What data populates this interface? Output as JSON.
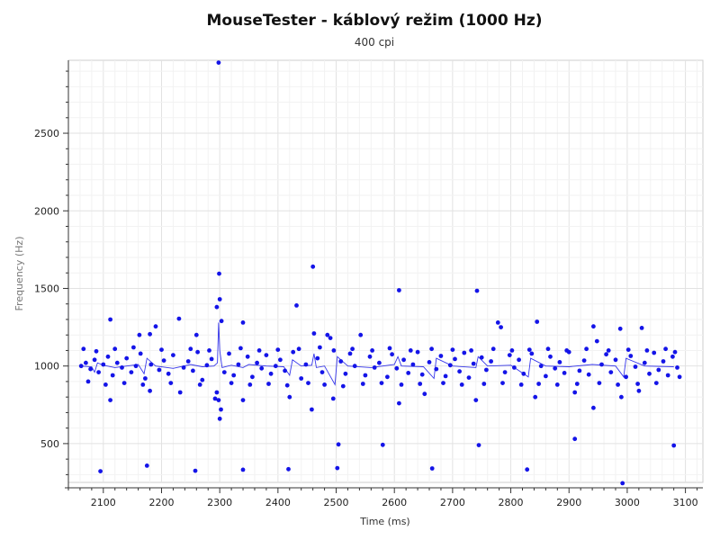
{
  "chart_data": {
    "type": "scatter",
    "title": "MouseTester - káblový režim (1000 Hz)",
    "subtitle": "400 cpi",
    "xlabel": "Time (ms)",
    "ylabel": "Frequency (Hz)",
    "xlim": [
      2040,
      3130
    ],
    "ylim": [
      250,
      2970
    ],
    "x_ticks": [
      2100,
      2200,
      2300,
      2400,
      2500,
      2600,
      2700,
      2800,
      2900,
      3000,
      3100
    ],
    "y_ticks": [
      500,
      1000,
      1500,
      2000,
      2500
    ],
    "grid": true,
    "series": [
      {
        "color": "#1414e8",
        "points": [
          [
            2095,
            322
          ],
          [
            2175,
            358
          ],
          [
            2258,
            325
          ],
          [
            2340,
            332
          ],
          [
            2418,
            335
          ],
          [
            2502,
            342
          ],
          [
            2665,
            340
          ],
          [
            2828,
            333
          ],
          [
            2992,
            245
          ],
          [
            2504,
            495
          ],
          [
            2580,
            492
          ],
          [
            2745,
            490
          ],
          [
            2910,
            530
          ],
          [
            3080,
            488
          ],
          [
            2298,
            2955
          ],
          [
            2299,
            1595
          ],
          [
            2300,
            1430
          ],
          [
            2460,
            1640
          ],
          [
            2608,
            1488
          ],
          [
            2742,
            1485
          ],
          [
            2112,
            1300
          ],
          [
            2230,
            1305
          ],
          [
            2432,
            1390
          ],
          [
            2295,
            1380
          ],
          [
            2303,
            1290
          ],
          [
            2340,
            1280
          ],
          [
            2180,
            1205
          ],
          [
            2162,
            1200
          ],
          [
            2190,
            1255
          ],
          [
            2260,
            1200
          ],
          [
            2462,
            1210
          ],
          [
            2485,
            1200
          ],
          [
            2490,
            1180
          ],
          [
            2542,
            1200
          ],
          [
            2778,
            1280
          ],
          [
            2783,
            1250
          ],
          [
            2845,
            1285
          ],
          [
            2942,
            1255
          ],
          [
            2988,
            1240
          ],
          [
            3025,
            1245
          ],
          [
            2948,
            1160
          ],
          [
            2298,
            780
          ],
          [
            2302,
            720
          ],
          [
            2300,
            660
          ],
          [
            2292,
            790
          ],
          [
            2295,
            830
          ],
          [
            2458,
            720
          ],
          [
            2340,
            780
          ],
          [
            2112,
            780
          ],
          [
            2608,
            760
          ],
          [
            2740,
            780
          ],
          [
            2942,
            730
          ],
          [
            2990,
            800
          ],
          [
            2842,
            800
          ],
          [
            2495,
            790
          ],
          [
            2420,
            800
          ],
          [
            2232,
            830
          ],
          [
            2180,
            840
          ],
          [
            2652,
            820
          ],
          [
            2910,
            830
          ],
          [
            3020,
            840
          ],
          [
            2062,
            1000
          ],
          [
            2070,
            1020
          ],
          [
            2078,
            980
          ],
          [
            2085,
            1040
          ],
          [
            2092,
            960
          ],
          [
            2100,
            1010
          ],
          [
            2108,
            1060
          ],
          [
            2116,
            940
          ],
          [
            2124,
            1020
          ],
          [
            2132,
            990
          ],
          [
            2140,
            1050
          ],
          [
            2148,
            960
          ],
          [
            2156,
            1000
          ],
          [
            2164,
            1080
          ],
          [
            2172,
            920
          ],
          [
            2182,
            1010
          ],
          [
            2196,
            975
          ],
          [
            2204,
            1035
          ],
          [
            2212,
            950
          ],
          [
            2220,
            1070
          ],
          [
            2238,
            990
          ],
          [
            2246,
            1030
          ],
          [
            2254,
            970
          ],
          [
            2262,
            1090
          ],
          [
            2270,
            910
          ],
          [
            2278,
            1005
          ],
          [
            2286,
            1045
          ],
          [
            2308,
            960
          ],
          [
            2316,
            1080
          ],
          [
            2324,
            940
          ],
          [
            2332,
            1010
          ],
          [
            2348,
            1060
          ],
          [
            2356,
            930
          ],
          [
            2364,
            1020
          ],
          [
            2372,
            985
          ],
          [
            2380,
            1070
          ],
          [
            2388,
            950
          ],
          [
            2396,
            1000
          ],
          [
            2404,
            1040
          ],
          [
            2412,
            970
          ],
          [
            2426,
            1090
          ],
          [
            2440,
            920
          ],
          [
            2448,
            1010
          ],
          [
            2468,
            1050
          ],
          [
            2476,
            960
          ],
          [
            2508,
            1030
          ],
          [
            2516,
            950
          ],
          [
            2524,
            1080
          ],
          [
            2532,
            1000
          ],
          [
            2550,
            940
          ],
          [
            2558,
            1060
          ],
          [
            2566,
            990
          ],
          [
            2574,
            1020
          ],
          [
            2588,
            930
          ],
          [
            2596,
            1075
          ],
          [
            2604,
            985
          ],
          [
            2616,
            1040
          ],
          [
            2624,
            955
          ],
          [
            2632,
            1010
          ],
          [
            2640,
            1090
          ],
          [
            2648,
            945
          ],
          [
            2660,
            1025
          ],
          [
            2672,
            980
          ],
          [
            2680,
            1065
          ],
          [
            2688,
            935
          ],
          [
            2696,
            1005
          ],
          [
            2704,
            1045
          ],
          [
            2712,
            965
          ],
          [
            2720,
            1085
          ],
          [
            2728,
            925
          ],
          [
            2736,
            1015
          ],
          [
            2750,
            1055
          ],
          [
            2758,
            975
          ],
          [
            2766,
            1030
          ],
          [
            2790,
            960
          ],
          [
            2798,
            1070
          ],
          [
            2806,
            990
          ],
          [
            2814,
            1040
          ],
          [
            2822,
            950
          ],
          [
            2836,
            1080
          ],
          [
            2852,
            1000
          ],
          [
            2860,
            935
          ],
          [
            2868,
            1060
          ],
          [
            2876,
            985
          ],
          [
            2884,
            1025
          ],
          [
            2892,
            955
          ],
          [
            2900,
            1090
          ],
          [
            2918,
            970
          ],
          [
            2926,
            1035
          ],
          [
            2934,
            945
          ],
          [
            2956,
            1010
          ],
          [
            2964,
            1075
          ],
          [
            2972,
            960
          ],
          [
            2980,
            1040
          ],
          [
            2998,
            930
          ],
          [
            3006,
            1065
          ],
          [
            3014,
            995
          ],
          [
            3030,
            1020
          ],
          [
            3038,
            950
          ],
          [
            3046,
            1085
          ],
          [
            3054,
            975
          ],
          [
            3062,
            1030
          ],
          [
            3070,
            940
          ],
          [
            3078,
            1060
          ],
          [
            3086,
            990
          ],
          [
            3090,
            930
          ],
          [
            2066,
            1110
          ],
          [
            2074,
            900
          ],
          [
            2088,
            1095
          ],
          [
            2104,
            880
          ],
          [
            2120,
            1110
          ],
          [
            2136,
            890
          ],
          [
            2152,
            1120
          ],
          [
            2168,
            880
          ],
          [
            2200,
            1105
          ],
          [
            2216,
            890
          ],
          [
            2250,
            1110
          ],
          [
            2266,
            880
          ],
          [
            2282,
            1100
          ],
          [
            2320,
            890
          ],
          [
            2336,
            1115
          ],
          [
            2352,
            880
          ],
          [
            2368,
            1100
          ],
          [
            2384,
            885
          ],
          [
            2400,
            1105
          ],
          [
            2416,
            875
          ],
          [
            2436,
            1110
          ],
          [
            2452,
            890
          ],
          [
            2472,
            1120
          ],
          [
            2480,
            880
          ],
          [
            2496,
            1100
          ],
          [
            2512,
            870
          ],
          [
            2528,
            1110
          ],
          [
            2546,
            885
          ],
          [
            2562,
            1100
          ],
          [
            2578,
            890
          ],
          [
            2592,
            1115
          ],
          [
            2612,
            880
          ],
          [
            2628,
            1100
          ],
          [
            2644,
            885
          ],
          [
            2664,
            1110
          ],
          [
            2684,
            890
          ],
          [
            2700,
            1105
          ],
          [
            2716,
            880
          ],
          [
            2732,
            1100
          ],
          [
            2754,
            885
          ],
          [
            2770,
            1110
          ],
          [
            2786,
            890
          ],
          [
            2802,
            1100
          ],
          [
            2818,
            880
          ],
          [
            2832,
            1105
          ],
          [
            2848,
            885
          ],
          [
            2864,
            1110
          ],
          [
            2880,
            880
          ],
          [
            2896,
            1100
          ],
          [
            2914,
            885
          ],
          [
            2930,
            1110
          ],
          [
            2952,
            890
          ],
          [
            2968,
            1100
          ],
          [
            2984,
            880
          ],
          [
            3002,
            1105
          ],
          [
            3018,
            885
          ],
          [
            3034,
            1100
          ],
          [
            3050,
            890
          ],
          [
            3066,
            1110
          ],
          [
            3082,
            1090
          ]
        ]
      },
      {
        "color": "#1414e8",
        "line": true,
        "points": [
          [
            2060,
            1000
          ],
          [
            2080,
            995
          ],
          [
            2085,
            960
          ],
          [
            2090,
            1020
          ],
          [
            2100,
            1005
          ],
          [
            2120,
            990
          ],
          [
            2140,
            1000
          ],
          [
            2160,
            1010
          ],
          [
            2170,
            950
          ],
          [
            2175,
            1050
          ],
          [
            2190,
            1000
          ],
          [
            2220,
            985
          ],
          [
            2250,
            1010
          ],
          [
            2270,
            995
          ],
          [
            2290,
            1000
          ],
          [
            2296,
            1020
          ],
          [
            2298,
            1280
          ],
          [
            2300,
            1100
          ],
          [
            2304,
            990
          ],
          [
            2320,
            1005
          ],
          [
            2340,
            990
          ],
          [
            2350,
            1010
          ],
          [
            2380,
            1000
          ],
          [
            2410,
            995
          ],
          [
            2420,
            940
          ],
          [
            2425,
            1040
          ],
          [
            2440,
            1000
          ],
          [
            2458,
            1005
          ],
          [
            2462,
            1080
          ],
          [
            2466,
            990
          ],
          [
            2480,
            1000
          ],
          [
            2498,
            880
          ],
          [
            2502,
            1060
          ],
          [
            2520,
            1000
          ],
          [
            2560,
            990
          ],
          [
            2600,
            1010
          ],
          [
            2606,
            1060
          ],
          [
            2612,
            1000
          ],
          [
            2650,
            995
          ],
          [
            2668,
            920
          ],
          [
            2672,
            1050
          ],
          [
            2700,
            1000
          ],
          [
            2740,
            990
          ],
          [
            2744,
            1060
          ],
          [
            2760,
            1000
          ],
          [
            2800,
            1005
          ],
          [
            2830,
            930
          ],
          [
            2834,
            1050
          ],
          [
            2860,
            1000
          ],
          [
            2900,
            995
          ],
          [
            2940,
            1010
          ],
          [
            2980,
            1000
          ],
          [
            2994,
            930
          ],
          [
            2998,
            1050
          ],
          [
            3030,
            1000
          ],
          [
            3080,
            995
          ]
        ]
      }
    ]
  }
}
